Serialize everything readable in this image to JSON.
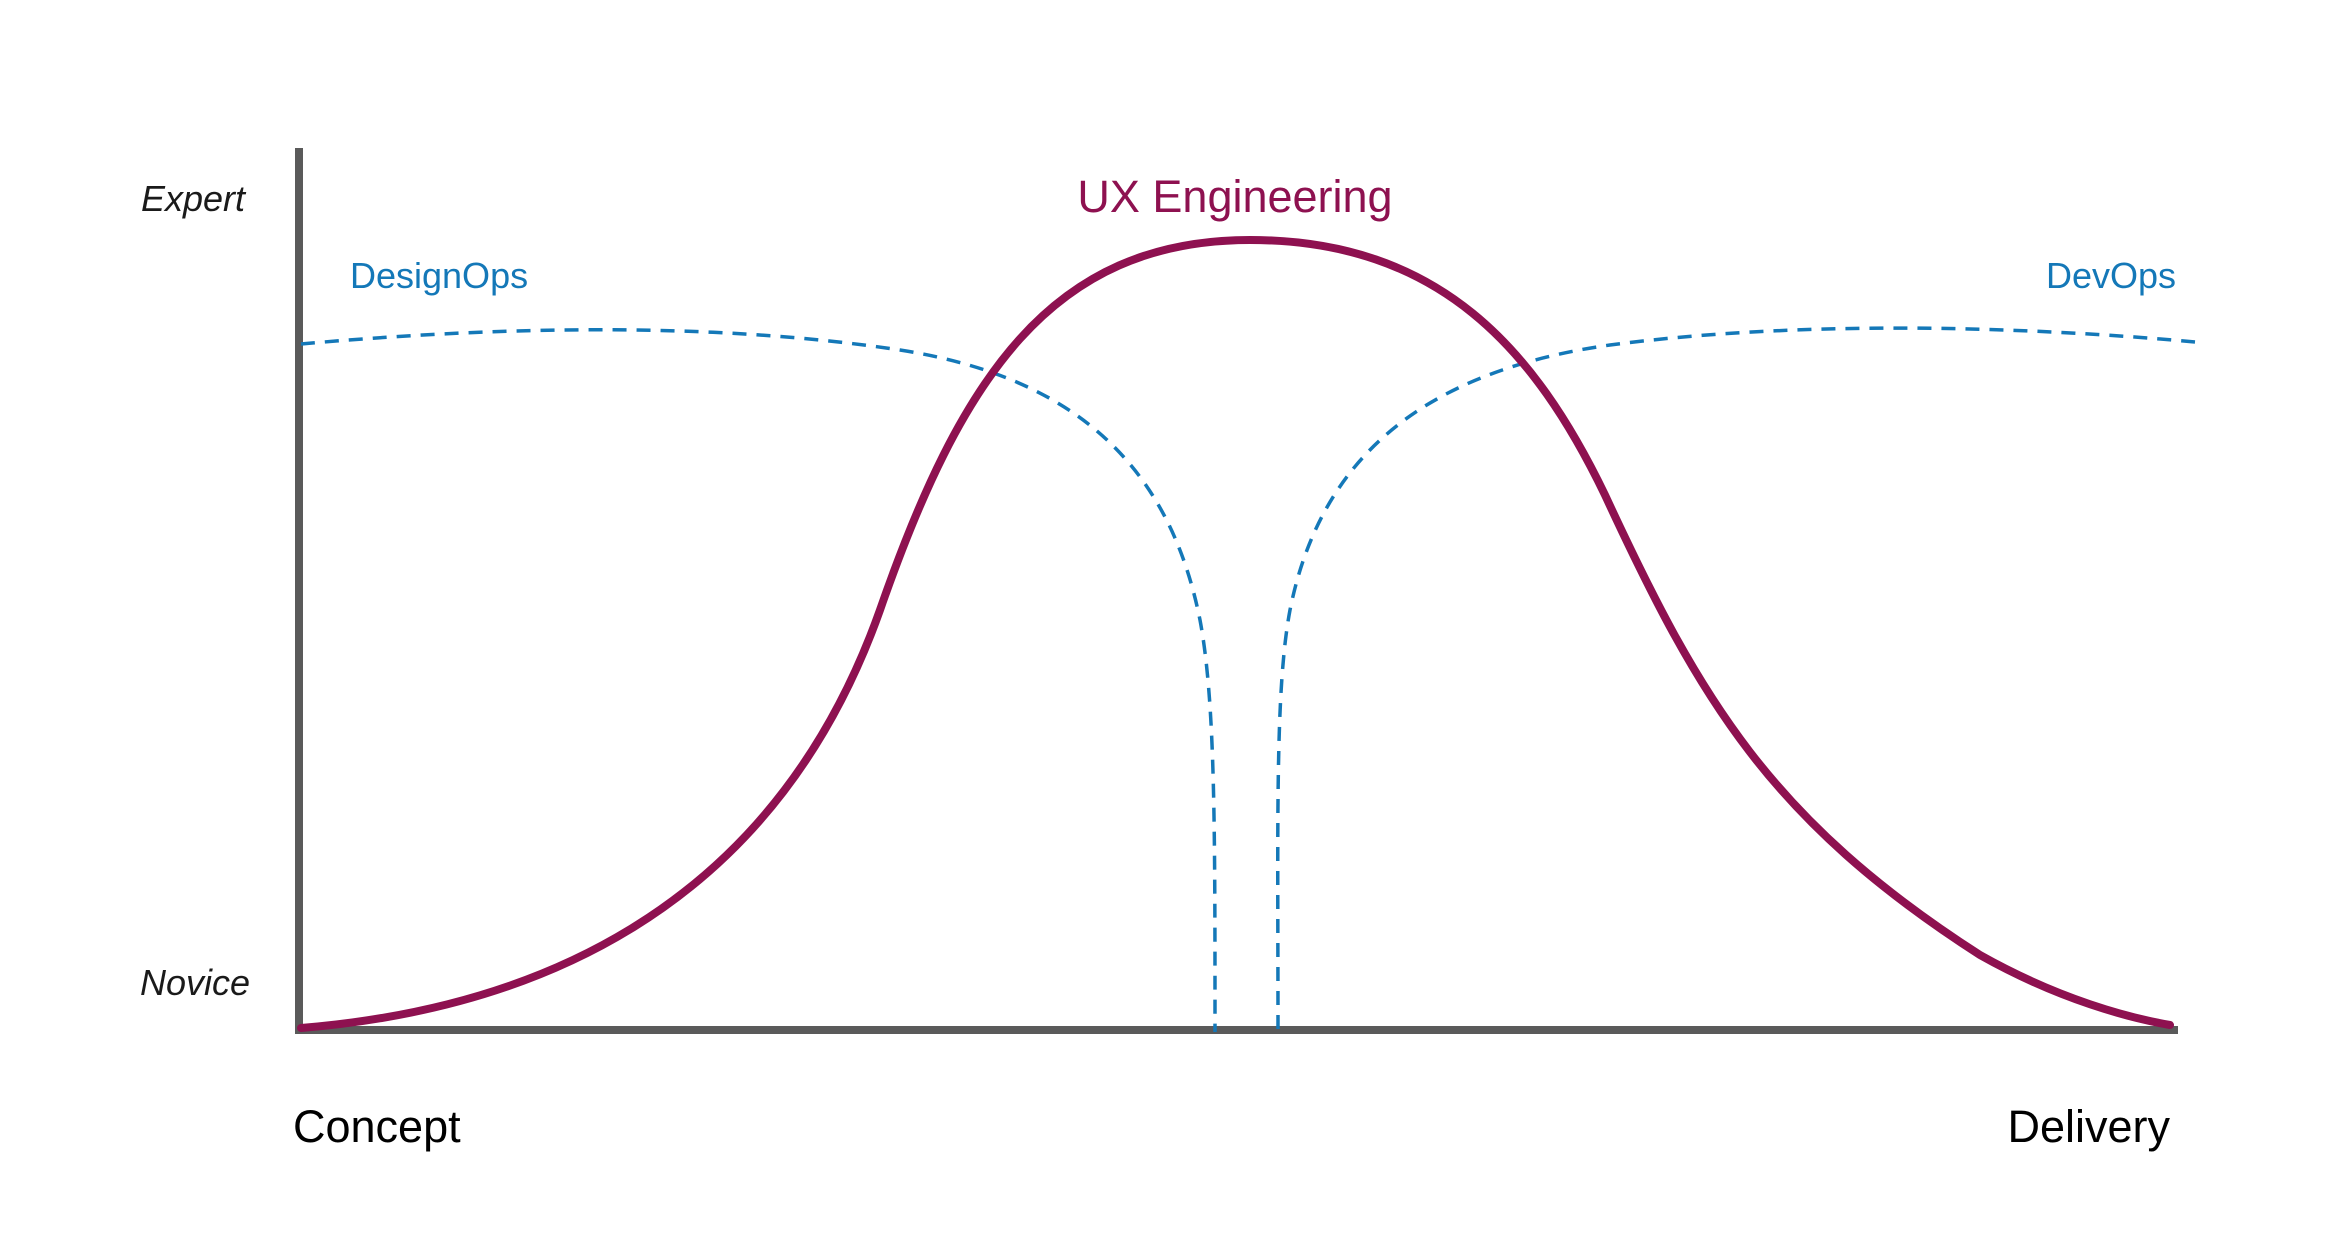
{
  "diagram": {
    "y_axis": {
      "top_label": "Expert",
      "bottom_label": "Novice"
    },
    "x_axis": {
      "start_label": "Concept",
      "end_label": "Delivery"
    },
    "curves": {
      "ux_engineering": {
        "label": "UX Engineering",
        "color": "#8e1150",
        "style": "solid"
      },
      "designops": {
        "label": "DesignOps",
        "color": "#1478b8",
        "style": "dashed"
      },
      "devops": {
        "label": "DevOps",
        "color": "#1478b8",
        "style": "dashed"
      }
    },
    "axis_color": "#5a5a5a"
  }
}
